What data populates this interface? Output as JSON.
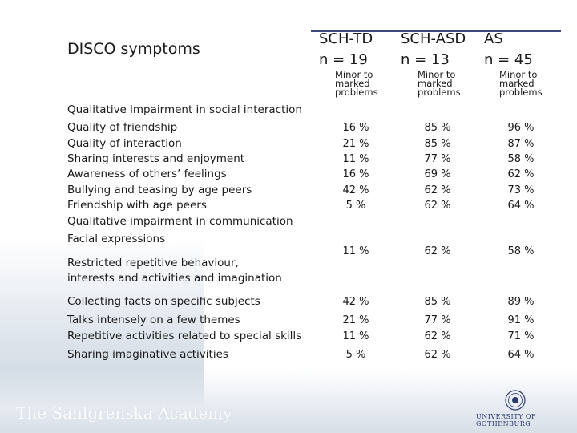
{
  "title": "DISCO symptoms",
  "columns": [
    {
      "group": "SCH-TD",
      "n": "n = 19",
      "sub": [
        "Minor to",
        "marked",
        "problems"
      ]
    },
    {
      "group": "SCH-ASD",
      "n": "n = 13",
      "sub": [
        "Minor to",
        "marked",
        "problems"
      ]
    },
    {
      "group": "AS",
      "n": "n = 45",
      "sub": [
        "Minor to",
        "marked",
        "problems"
      ]
    }
  ],
  "rows": [
    {
      "label": "Qualitative impairment in social interaction",
      "values": [
        "",
        "",
        ""
      ]
    },
    {
      "label": "Quality of friendship",
      "values": [
        "16 %",
        "85 %",
        "96 %"
      ]
    },
    {
      "label": "Quality of interaction",
      "values": [
        "21 %",
        "85 %",
        "87 %"
      ]
    },
    {
      "label": "Sharing interests and enjoyment",
      "values": [
        "11 %",
        "77 %",
        "58 %"
      ]
    },
    {
      "label": "Awareness of others’ feelings",
      "values": [
        "16 %",
        "69 %",
        "62 %"
      ]
    },
    {
      "label": "Bullying and teasing by age peers",
      "values": [
        "42 %",
        "62 %",
        "73 %"
      ]
    },
    {
      "label": "Friendship with age peers",
      "values": [
        "5 %",
        "62 %",
        "64 %"
      ]
    },
    {
      "label": "Qualitative impairment in communication",
      "values": [
        "",
        "",
        ""
      ]
    },
    {
      "label": "Facial expressions",
      "values": [
        "11 %",
        "62 %",
        "58 %"
      ]
    },
    {
      "label": "Restricted repetitive behaviour,",
      "values": [
        "",
        "",
        ""
      ]
    },
    {
      "label": "interests and activities and imagination",
      "values": [
        "",
        "",
        ""
      ]
    },
    {
      "label": "Collecting facts on specific subjects",
      "values": [
        "42 %",
        "85 %",
        "89 %"
      ]
    },
    {
      "label": "Talks intensely on a few themes",
      "values": [
        "21 %",
        "77 %",
        "91 %"
      ]
    },
    {
      "label": "Repetitive activities related to special skills",
      "values": [
        "11 %",
        "62 %",
        "71 %"
      ]
    },
    {
      "label": "Sharing imaginative activities",
      "values": [
        "5 %",
        "62 %",
        "64 %"
      ]
    }
  ],
  "footer": {
    "academy": "The Sahlgrenska Academy",
    "university": "UNIVERSITY OF GOTHENBURG"
  },
  "colors": {
    "rule": "#3b4a7a",
    "band": "#d8dfe7"
  }
}
